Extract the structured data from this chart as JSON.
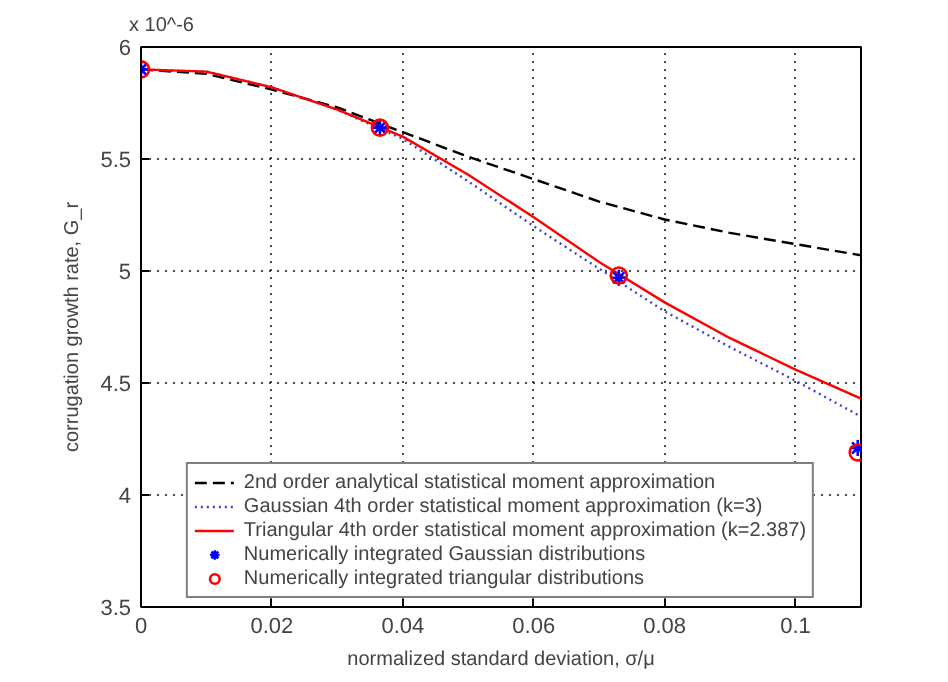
{
  "chart_data": {
    "type": "line",
    "xlabel": "normalized standard deviation, σ/μ",
    "ylabel": "corrugation growth rate, G_r",
    "annotations": [
      "x 10^-6"
    ],
    "xlim": [
      0,
      0.11
    ],
    "xticks": [
      0,
      0.02,
      0.04,
      0.06,
      0.08,
      0.1
    ],
    "ylim": [
      3.5,
      6
    ],
    "yticks": [
      3.5,
      4,
      4.5,
      5,
      5.5,
      6
    ],
    "grid": true,
    "legend": "bottom",
    "series": [
      {
        "name": "2nd order analytical statistical moment approximation",
        "line_style": "dashed",
        "color": "#000000",
        "x": [
          0,
          0.01,
          0.02,
          0.03,
          0.04,
          0.05,
          0.06,
          0.07,
          0.08,
          0.09,
          0.1,
          0.11
        ],
        "values": [
          5.9,
          5.88,
          5.81,
          5.73,
          5.62,
          5.51,
          5.41,
          5.31,
          5.23,
          5.17,
          5.12,
          5.07
        ]
      },
      {
        "name": "Gaussian 4th order statistical moment approximation (k=3)",
        "line_style": "dotted",
        "color": "#4040d0",
        "x": [
          0,
          0.01,
          0.02,
          0.03,
          0.04,
          0.05,
          0.06,
          0.07,
          0.08,
          0.09,
          0.1,
          0.11
        ],
        "values": [
          5.9,
          5.89,
          5.82,
          5.72,
          5.59,
          5.4,
          5.2,
          5.01,
          4.82,
          4.66,
          4.51,
          4.35
        ]
      },
      {
        "name": "Triangular 4th order statistical moment approximation (k=2.387)",
        "line_style": "solid",
        "color": "#ff0000",
        "x": [
          0,
          0.01,
          0.02,
          0.03,
          0.04,
          0.05,
          0.06,
          0.07,
          0.08,
          0.09,
          0.1,
          0.11
        ],
        "values": [
          5.9,
          5.89,
          5.82,
          5.72,
          5.6,
          5.43,
          5.24,
          5.04,
          4.86,
          4.7,
          4.56,
          4.43
        ]
      },
      {
        "name": "Numerically integrated Gaussian distributions",
        "type": "scatter",
        "marker": "cross",
        "color": "#0000ff",
        "x": [
          0,
          0.0365,
          0.073,
          0.1095
        ],
        "values": [
          5.9,
          5.64,
          4.97,
          4.21
        ]
      },
      {
        "name": "Numerically integrated triangular distributions",
        "type": "scatter",
        "marker": "circle",
        "color": "#ff0000",
        "x": [
          0,
          0.0365,
          0.073,
          0.1095
        ],
        "values": [
          5.9,
          5.64,
          4.98,
          4.19
        ]
      }
    ]
  }
}
